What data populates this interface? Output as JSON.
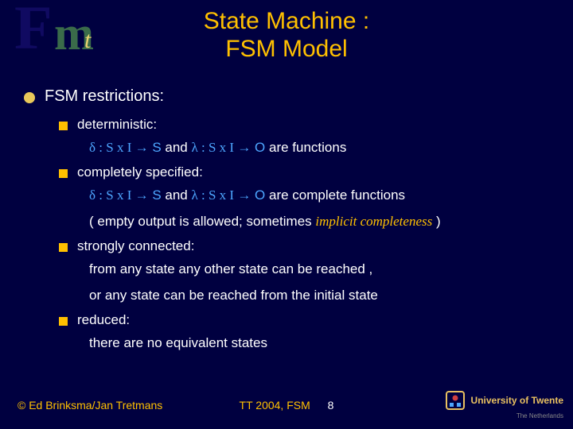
{
  "logo": {
    "f": "F",
    "m": "m",
    "t": "t"
  },
  "title_l1": "State Machine :",
  "title_l2": "FSM Model",
  "heading": "FSM  restrictions:",
  "items": [
    {
      "label": "deterministic:",
      "lines": [
        {
          "parts": [
            {
              "t": "δ :  S x I  ",
              "cls": "blue sym"
            },
            {
              "t": "→",
              "cls": "blue sym"
            },
            {
              "t": "  S",
              "cls": "blue"
            },
            {
              "t": "   and   ",
              "cls": ""
            },
            {
              "t": "λ : S x I  ",
              "cls": "blue sym"
            },
            {
              "t": "→",
              "cls": "blue sym"
            },
            {
              "t": "  O",
              "cls": "blue"
            },
            {
              "t": "   are functions",
              "cls": ""
            }
          ]
        }
      ]
    },
    {
      "label": "completely specified:",
      "lines": [
        {
          "parts": [
            {
              "t": "δ :  S x I  ",
              "cls": "blue sym"
            },
            {
              "t": "→",
              "cls": "blue sym"
            },
            {
              "t": "  S",
              "cls": "blue"
            },
            {
              "t": "   and   ",
              "cls": ""
            },
            {
              "t": "λ : S x I  ",
              "cls": "blue sym"
            },
            {
              "t": "→",
              "cls": "blue sym"
            },
            {
              "t": "  O",
              "cls": "blue"
            },
            {
              "t": "   are complete functions",
              "cls": ""
            }
          ]
        },
        {
          "parts": [
            {
              "t": "( empty output is allowed;   sometimes ",
              "cls": ""
            },
            {
              "t": "implicit  completeness",
              "cls": "completeness"
            },
            {
              "t": " )",
              "cls": ""
            }
          ]
        }
      ]
    },
    {
      "label": "strongly connected:",
      "lines": [
        {
          "parts": [
            {
              "t": "from any state any other state can be reached ,",
              "cls": ""
            }
          ]
        },
        {
          "parts": [
            {
              "t": "or any state can be reached from the initial state",
              "cls": ""
            }
          ]
        }
      ]
    },
    {
      "label": "reduced:",
      "lines": [
        {
          "parts": [
            {
              "t": "there are no equivalent states",
              "cls": ""
            }
          ]
        }
      ]
    }
  ],
  "footer": {
    "copyright": "© Ed Brinksma/Jan Tretmans",
    "center": "TT 2004, FSM",
    "page": "8",
    "ut_name": "University of Twente",
    "ut_sub": "The Netherlands"
  }
}
